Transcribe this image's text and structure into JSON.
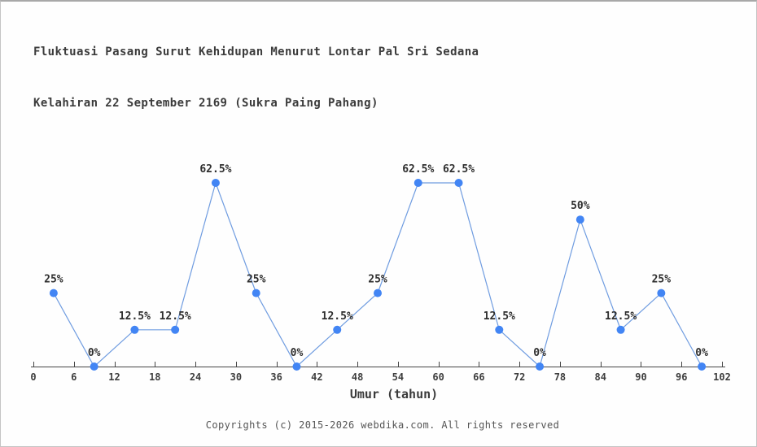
{
  "chart_data": {
    "type": "line",
    "title": "Fluktuasi Pasang Surut Kehidupan Menurut Lontar Pal Sri Sedana",
    "subtitle": "Kelahiran 22 September 2169 (Sukra Paing Pahang)",
    "xlabel": "Umur (tahun)",
    "ylabel": "",
    "x": [
      3,
      9,
      15,
      21,
      27,
      33,
      39,
      45,
      51,
      57,
      63,
      69,
      75,
      81,
      87,
      93,
      99
    ],
    "values": [
      25,
      0,
      12.5,
      12.5,
      62.5,
      25,
      0,
      12.5,
      25,
      62.5,
      62.5,
      12.5,
      0,
      50,
      12.5,
      25,
      0
    ],
    "point_labels": [
      "25%",
      "0%",
      "12.5%",
      "12.5%",
      "62.5%",
      "25%",
      "0%",
      "12.5%",
      "25%",
      "62.5%",
      "62.5%",
      "12.5%",
      "0%",
      "50%",
      "12.5%",
      "25%",
      "0%"
    ],
    "x_ticks": [
      0,
      6,
      12,
      18,
      24,
      30,
      36,
      42,
      48,
      54,
      60,
      66,
      72,
      78,
      84,
      90,
      96,
      102
    ],
    "xlim": [
      0,
      102
    ],
    "grid": false,
    "legend": "none",
    "colors": {
      "marker": "#4285f4",
      "line": "#6f9ce0",
      "axis": "#444444",
      "title_text": "#3b3b3b",
      "footer_text": "#555555"
    }
  },
  "footer": {
    "text": "Copyrights (c) 2015-2026 webdika.com. All rights reserved"
  }
}
